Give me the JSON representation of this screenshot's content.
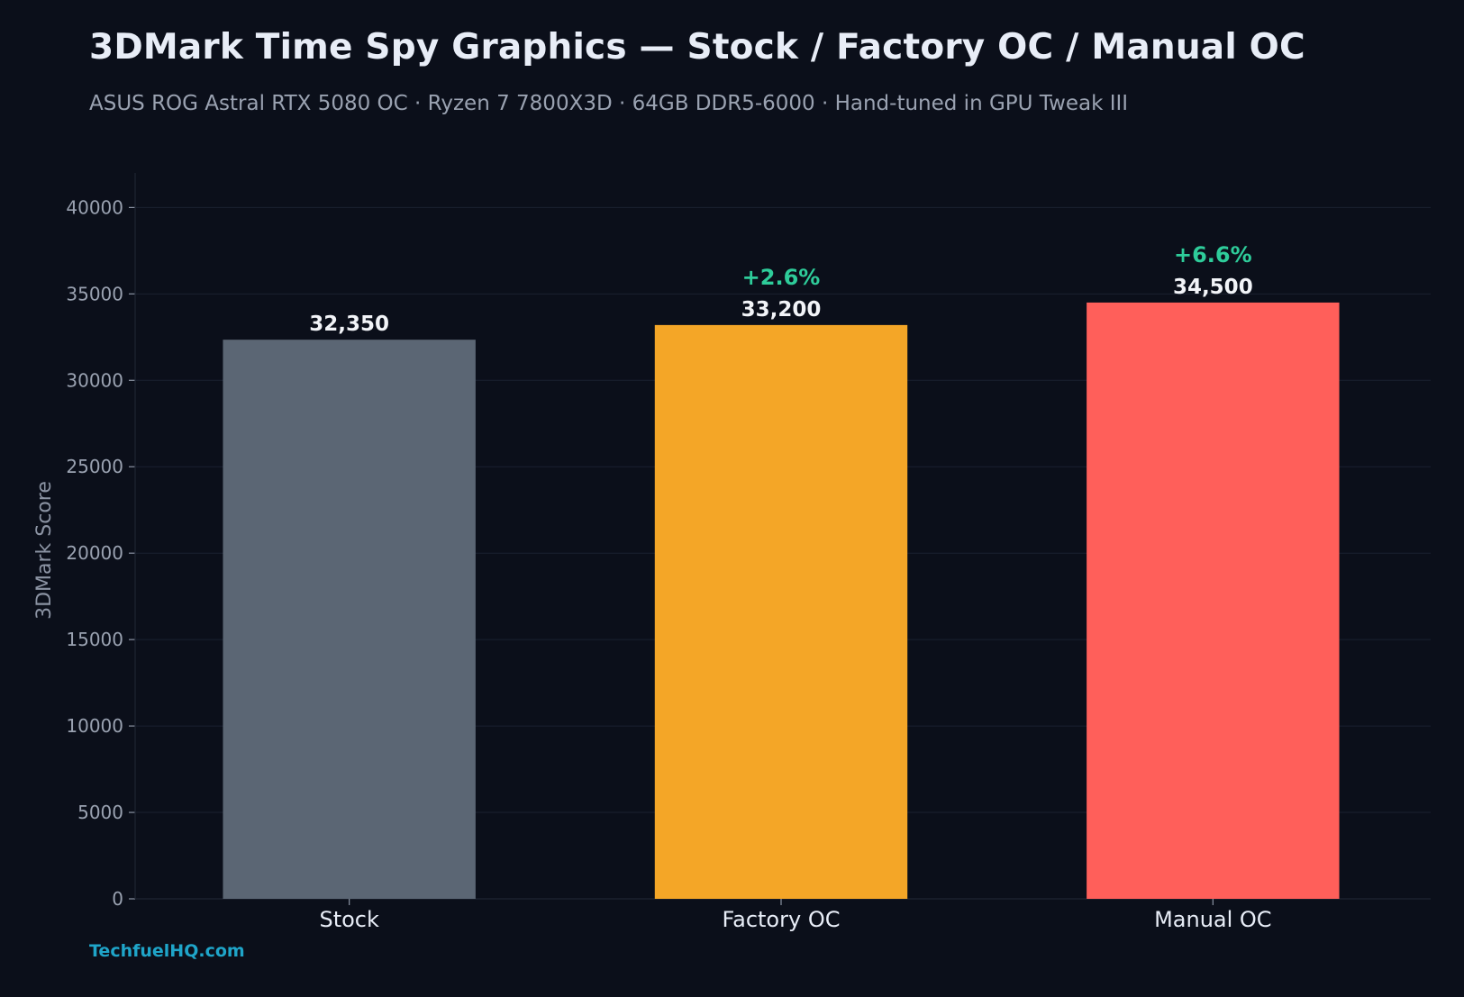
{
  "header": {
    "title": "3DMark Time Spy Graphics — Stock / Factory OC / Manual OC",
    "subtitle": "ASUS ROG Astral RTX 5080 OC · Ryzen 7 7800X3D · 64GB DDR5-6000 · Hand-tuned in GPU Tweak III"
  },
  "footer": {
    "credit": "TechfuelHQ.com"
  },
  "chart_data": {
    "type": "bar",
    "title": "3DMark Time Spy Graphics — Stock / Factory OC / Manual OC",
    "subtitle": "ASUS ROG Astral RTX 5080 OC · Ryzen 7 7800X3D · 64GB DDR5-6000 · Hand-tuned in GPU Tweak III",
    "categories": [
      "Stock",
      "Factory OC",
      "Manual OC"
    ],
    "values": [
      32350,
      33200,
      34500
    ],
    "value_labels": [
      "32,350",
      "33,200",
      "34,500"
    ],
    "delta_labels": [
      "",
      "+2.6%",
      "+6.6%"
    ],
    "bar_colors": [
      "#5b6674",
      "#f4a627",
      "#ff5f5a"
    ],
    "delta_color": "#2ecc9a",
    "xlabel": "",
    "ylabel": "3DMark Score",
    "ylim": [
      0,
      42000
    ],
    "yticks": [
      0,
      5000,
      10000,
      15000,
      20000,
      25000,
      30000,
      35000,
      40000
    ],
    "grid": true,
    "legend": "none"
  }
}
